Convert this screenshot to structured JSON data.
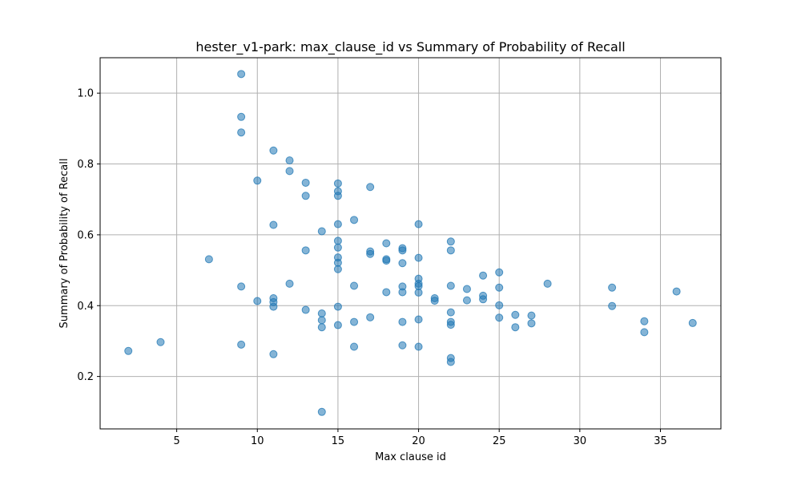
{
  "chart_data": {
    "type": "scatter",
    "title": "hester_v1-park: max_clause_id vs Summary of Probability of Recall",
    "xlabel": "Max clause id",
    "ylabel": "Summary of Probability of Recall",
    "xlim": [
      0.25,
      38.75
    ],
    "ylim": [
      0.052,
      1.1
    ],
    "xticks": [
      5,
      10,
      15,
      20,
      25,
      30,
      35
    ],
    "yticks": [
      0.2,
      0.4,
      0.6,
      0.8,
      1.0
    ],
    "xtick_labels": [
      "5",
      "10",
      "15",
      "20",
      "25",
      "30",
      "35"
    ],
    "ytick_labels": [
      "0.2",
      "0.4",
      "0.6",
      "0.8",
      "1.0"
    ],
    "grid": true,
    "marker_color": "#1f77b4",
    "marker_alpha": 0.55,
    "points": [
      [
        2,
        0.272
      ],
      [
        4,
        0.297
      ],
      [
        7,
        0.531
      ],
      [
        9,
        1.054
      ],
      [
        9,
        0.933
      ],
      [
        9,
        0.889
      ],
      [
        9,
        0.454
      ],
      [
        9,
        0.29
      ],
      [
        10,
        0.753
      ],
      [
        10,
        0.413
      ],
      [
        11,
        0.838
      ],
      [
        11,
        0.628
      ],
      [
        11,
        0.421
      ],
      [
        11,
        0.41
      ],
      [
        11,
        0.397
      ],
      [
        11,
        0.263
      ],
      [
        12,
        0.81
      ],
      [
        12,
        0.78
      ],
      [
        12,
        0.462
      ],
      [
        13,
        0.747
      ],
      [
        13,
        0.71
      ],
      [
        13,
        0.556
      ],
      [
        13,
        0.388
      ],
      [
        14,
        0.61
      ],
      [
        14,
        0.378
      ],
      [
        14,
        0.359
      ],
      [
        14,
        0.339
      ],
      [
        14,
        0.1
      ],
      [
        15,
        0.745
      ],
      [
        15,
        0.723
      ],
      [
        15,
        0.71
      ],
      [
        15,
        0.63
      ],
      [
        15,
        0.583
      ],
      [
        15,
        0.564
      ],
      [
        15,
        0.536
      ],
      [
        15,
        0.521
      ],
      [
        15,
        0.503
      ],
      [
        15,
        0.397
      ],
      [
        15,
        0.345
      ],
      [
        16,
        0.642
      ],
      [
        16,
        0.456
      ],
      [
        16,
        0.354
      ],
      [
        16,
        0.284
      ],
      [
        17,
        0.735
      ],
      [
        17,
        0.553
      ],
      [
        17,
        0.546
      ],
      [
        17,
        0.367
      ],
      [
        18,
        0.576
      ],
      [
        18,
        0.531
      ],
      [
        18,
        0.527
      ],
      [
        18,
        0.438
      ],
      [
        19,
        0.562
      ],
      [
        19,
        0.556
      ],
      [
        19,
        0.52
      ],
      [
        19,
        0.454
      ],
      [
        19,
        0.438
      ],
      [
        19,
        0.354
      ],
      [
        19,
        0.288
      ],
      [
        20,
        0.63
      ],
      [
        20,
        0.535
      ],
      [
        20,
        0.476
      ],
      [
        20,
        0.462
      ],
      [
        20,
        0.455
      ],
      [
        20,
        0.437
      ],
      [
        20,
        0.361
      ],
      [
        20,
        0.284
      ],
      [
        21,
        0.421
      ],
      [
        21,
        0.414
      ],
      [
        22,
        0.581
      ],
      [
        22,
        0.556
      ],
      [
        22,
        0.456
      ],
      [
        22,
        0.381
      ],
      [
        22,
        0.354
      ],
      [
        22,
        0.346
      ],
      [
        22,
        0.252
      ],
      [
        22,
        0.241
      ],
      [
        23,
        0.447
      ],
      [
        23,
        0.415
      ],
      [
        24,
        0.485
      ],
      [
        24,
        0.428
      ],
      [
        24,
        0.418
      ],
      [
        25,
        0.494
      ],
      [
        25,
        0.451
      ],
      [
        25,
        0.401
      ],
      [
        25,
        0.366
      ],
      [
        26,
        0.374
      ],
      [
        26,
        0.339
      ],
      [
        27,
        0.372
      ],
      [
        27,
        0.35
      ],
      [
        28,
        0.462
      ],
      [
        32,
        0.451
      ],
      [
        32,
        0.399
      ],
      [
        34,
        0.356
      ],
      [
        34,
        0.325
      ],
      [
        36,
        0.44
      ],
      [
        37,
        0.351
      ]
    ]
  }
}
